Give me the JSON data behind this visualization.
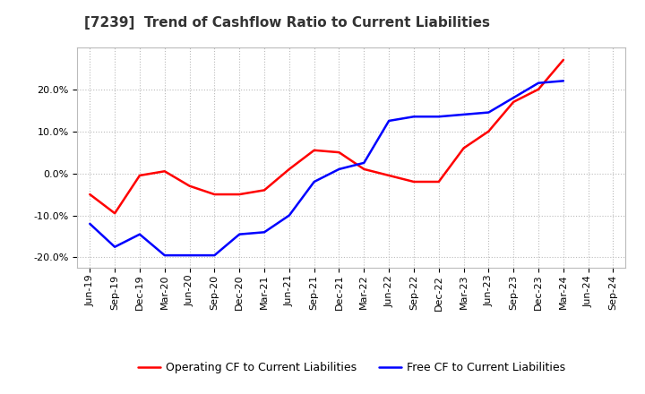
{
  "title": "[7239]  Trend of Cashflow Ratio to Current Liabilities",
  "x_labels": [
    "Jun-19",
    "Sep-19",
    "Dec-19",
    "Mar-20",
    "Jun-20",
    "Sep-20",
    "Dec-20",
    "Mar-21",
    "Jun-21",
    "Sep-21",
    "Dec-21",
    "Mar-22",
    "Jun-22",
    "Sep-22",
    "Dec-22",
    "Mar-23",
    "Jun-23",
    "Sep-23",
    "Dec-23",
    "Mar-24",
    "Jun-24",
    "Sep-24"
  ],
  "operating_cf": [
    -0.05,
    -0.095,
    -0.005,
    0.005,
    -0.03,
    -0.05,
    -0.05,
    -0.04,
    0.01,
    0.055,
    0.05,
    0.01,
    -0.005,
    -0.02,
    -0.02,
    0.06,
    0.1,
    0.17,
    0.2,
    0.27,
    null,
    null
  ],
  "free_cf": [
    -0.12,
    -0.175,
    -0.145,
    -0.195,
    -0.195,
    -0.195,
    -0.145,
    -0.14,
    -0.1,
    -0.02,
    0.01,
    0.025,
    0.125,
    0.135,
    0.135,
    0.14,
    0.145,
    0.18,
    0.215,
    0.22,
    null,
    null
  ],
  "operating_color": "#ff0000",
  "free_color": "#0000ff",
  "ylim": [
    -0.225,
    0.3
  ],
  "yticks": [
    -0.2,
    -0.1,
    0.0,
    0.1,
    0.2
  ],
  "background_color": "#ffffff",
  "grid_color": "#aaaaaa",
  "title_fontsize": 11,
  "tick_fontsize": 8,
  "legend_fontsize": 9,
  "linewidth": 1.8
}
